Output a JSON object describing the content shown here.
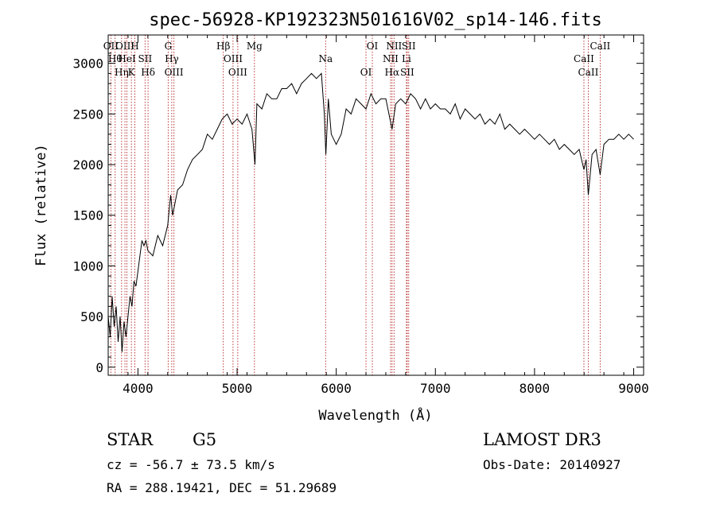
{
  "chart_data": {
    "type": "line",
    "title": "spec-56928-KP192323N501616V02_sp14-146.fits",
    "xlabel": "Wavelength (Å)",
    "ylabel": "Flux (relative)",
    "xlim": [
      3700,
      9100
    ],
    "ylim": [
      -80,
      3280
    ],
    "x_ticks": [
      4000,
      5000,
      6000,
      7000,
      8000,
      9000
    ],
    "x_tick_labels": [
      "4000",
      "5000",
      "6000",
      "7000",
      "8000",
      "9000"
    ],
    "y_ticks": [
      0,
      500,
      1000,
      1500,
      2000,
      2500,
      3000
    ],
    "y_tick_labels": [
      "0",
      "500",
      "1000",
      "1500",
      "2000",
      "2500",
      "3000"
    ],
    "grid": false,
    "line_color": "#000000",
    "marker_color": "#b22222",
    "series": [
      {
        "x": [
          3700,
          3720,
          3740,
          3760,
          3780,
          3800,
          3820,
          3840,
          3860,
          3880,
          3900,
          3920,
          3940,
          3960,
          3980,
          4000,
          4020,
          4040,
          4060,
          4080,
          4100,
          4150,
          4200,
          4250,
          4300,
          4330,
          4350,
          4400,
          4450,
          4500,
          4550,
          4600,
          4650,
          4700,
          4750,
          4800,
          4850,
          4900,
          4950,
          5000,
          5050,
          5100,
          5150,
          5180,
          5200,
          5250,
          5300,
          5350,
          5400,
          5450,
          5500,
          5550,
          5600,
          5650,
          5700,
          5750,
          5800,
          5850,
          5880,
          5895,
          5920,
          5950,
          6000,
          6050,
          6100,
          6150,
          6200,
          6250,
          6300,
          6350,
          6400,
          6450,
          6500,
          6563,
          6600,
          6650,
          6700,
          6750,
          6800,
          6850,
          6900,
          6950,
          7000,
          7050,
          7100,
          7150,
          7200,
          7250,
          7300,
          7350,
          7400,
          7450,
          7500,
          7550,
          7600,
          7650,
          7700,
          7750,
          7800,
          7850,
          7900,
          7950,
          8000,
          8050,
          8100,
          8150,
          8200,
          8250,
          8300,
          8350,
          8400,
          8450,
          8498,
          8520,
          8542,
          8580,
          8620,
          8662,
          8700,
          8750,
          8800,
          8850,
          8900,
          8950,
          9000
        ],
        "y": [
          500,
          300,
          700,
          400,
          600,
          250,
          500,
          150,
          450,
          300,
          500,
          700,
          600,
          850,
          800,
          950,
          1100,
          1250,
          1200,
          1250,
          1150,
          1100,
          1300,
          1200,
          1400,
          1700,
          1500,
          1750,
          1800,
          1950,
          2050,
          2100,
          2150,
          2300,
          2250,
          2350,
          2450,
          2500,
          2400,
          2450,
          2400,
          2500,
          2350,
          2000,
          2600,
          2550,
          2700,
          2650,
          2650,
          2750,
          2750,
          2800,
          2700,
          2800,
          2850,
          2900,
          2850,
          2900,
          2500,
          2100,
          2650,
          2300,
          2200,
          2300,
          2550,
          2500,
          2650,
          2600,
          2550,
          2700,
          2600,
          2650,
          2650,
          2350,
          2600,
          2650,
          2600,
          2700,
          2650,
          2550,
          2650,
          2550,
          2600,
          2550,
          2550,
          2500,
          2600,
          2450,
          2550,
          2500,
          2450,
          2500,
          2400,
          2450,
          2400,
          2500,
          2350,
          2400,
          2350,
          2300,
          2350,
          2300,
          2250,
          2300,
          2250,
          2200,
          2250,
          2150,
          2200,
          2150,
          2100,
          2150,
          1950,
          2050,
          1700,
          2100,
          2150,
          1900,
          2200,
          2250,
          2250,
          2300,
          2250,
          2300,
          2250
        ]
      }
    ],
    "line_markers": [
      {
        "wavelength": 3727,
        "labels": [
          "OII"
        ]
      },
      {
        "wavelength": 3770,
        "labels": [
          "Hθ"
        ]
      },
      {
        "wavelength": 3835,
        "labels": [
          "Hη"
        ]
      },
      {
        "wavelength": 3869,
        "labels": [
          "OIII"
        ]
      },
      {
        "wavelength": 3889,
        "labels": [
          "HeI"
        ]
      },
      {
        "wavelength": 3934,
        "labels": [
          "K"
        ]
      },
      {
        "wavelength": 3969,
        "labels": [
          "H"
        ]
      },
      {
        "wavelength": 4072,
        "labels": [
          "SII"
        ]
      },
      {
        "wavelength": 4102,
        "labels": [
          "Hδ"
        ]
      },
      {
        "wavelength": 4305,
        "labels": [
          "G"
        ]
      },
      {
        "wavelength": 4341,
        "labels": [
          "Hγ"
        ]
      },
      {
        "wavelength": 4363,
        "labels": [
          "OIII"
        ]
      },
      {
        "wavelength": 4861,
        "labels": [
          "Hβ"
        ]
      },
      {
        "wavelength": 4959,
        "labels": [
          "OIII"
        ]
      },
      {
        "wavelength": 5007,
        "labels": [
          "OIII"
        ]
      },
      {
        "wavelength": 5175,
        "labels": [
          "Mg"
        ]
      },
      {
        "wavelength": 5893,
        "labels": [
          "Na"
        ]
      },
      {
        "wavelength": 6300,
        "labels": [
          "OI"
        ]
      },
      {
        "wavelength": 6364,
        "labels": [
          "OI"
        ]
      },
      {
        "wavelength": 6548,
        "labels": [
          "NII"
        ]
      },
      {
        "wavelength": 6563,
        "labels": [
          "Hα"
        ]
      },
      {
        "wavelength": 6583,
        "labels": [
          "NII"
        ]
      },
      {
        "wavelength": 6708,
        "labels": [
          "Li"
        ]
      },
      {
        "wavelength": 6716,
        "labels": [
          "SII"
        ]
      },
      {
        "wavelength": 6731,
        "labels": [
          "SII"
        ]
      },
      {
        "wavelength": 8498,
        "labels": [
          "CaII"
        ]
      },
      {
        "wavelength": 8542,
        "labels": [
          "CaII"
        ]
      },
      {
        "wavelength": 8662,
        "labels": [
          "CaII"
        ]
      }
    ]
  },
  "info": {
    "object_class": "STAR",
    "subclass": "G5",
    "survey": "LAMOST DR3",
    "redshift": "cz = -56.7 ± 73.5 km/s",
    "obs_date": "Obs-Date: 20140927",
    "coords": "RA = 288.19421, DEC =  51.29689"
  }
}
